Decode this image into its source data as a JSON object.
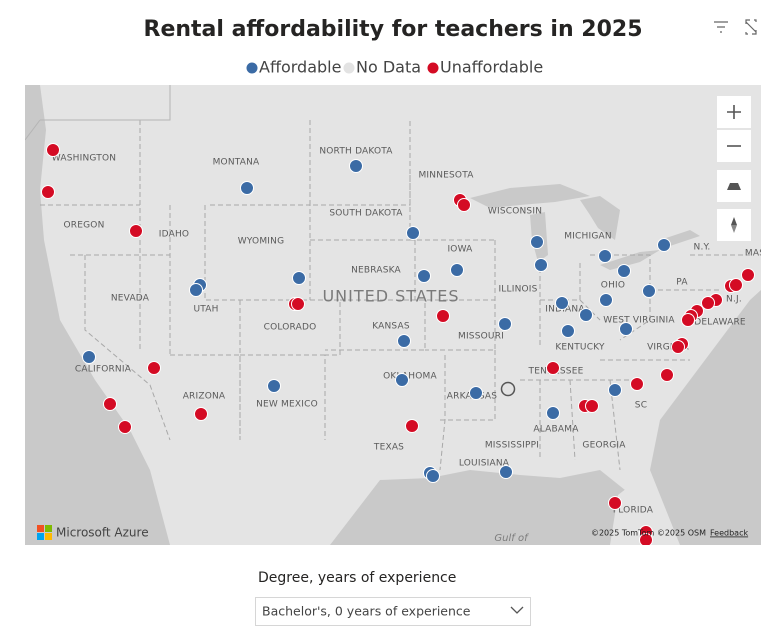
{
  "title": "Rental affordability for teachers in 2025",
  "legend": [
    {
      "label": "Affordable",
      "color": "#3b6ba5"
    },
    {
      "label": "No Data",
      "color": "#e3e3e3"
    },
    {
      "label": "Unaffordable",
      "color": "#d40b24"
    }
  ],
  "map": {
    "country_label": "UNITED STATES",
    "region_labels": [
      "WASHINGTON",
      "MONTANA",
      "NORTH DAKOTA",
      "MINNESOTA",
      "OREGON",
      "IDAHO",
      "WYOMING",
      "SOUTH DAKOTA",
      "WISCONSIN",
      "MICHIGAN",
      "N.Y.",
      "IOWA",
      "NEBRASKA",
      "NEVADA",
      "UTAH",
      "COLORADO",
      "ILLINOIS",
      "INDIANA",
      "OHIO",
      "PA",
      "N.J.",
      "KANSAS",
      "MISSOURI",
      "KENTUCKY",
      "WEST VIRGINIA",
      "DELAWARE",
      "VIRGINIA",
      "CALIFORNIA",
      "OKLAHOMA",
      "TENNESSEE",
      "ARIZONA",
      "NEW MEXICO",
      "ARKANSAS",
      "SC",
      "ALABAMA",
      "GEORGIA",
      "TEXAS",
      "MISSISSIPPI",
      "LOUISIANA",
      "FLORIDA",
      "MAS"
    ],
    "water_label": "Gulf of",
    "brand": "Microsoft Azure",
    "attribution": "©2025 TomTom ©2025 OSM",
    "feedback_link": "Feedback"
  },
  "filter": {
    "label": "Degree, years of experience",
    "selected": "Bachelor's, 0 years of experience"
  }
}
